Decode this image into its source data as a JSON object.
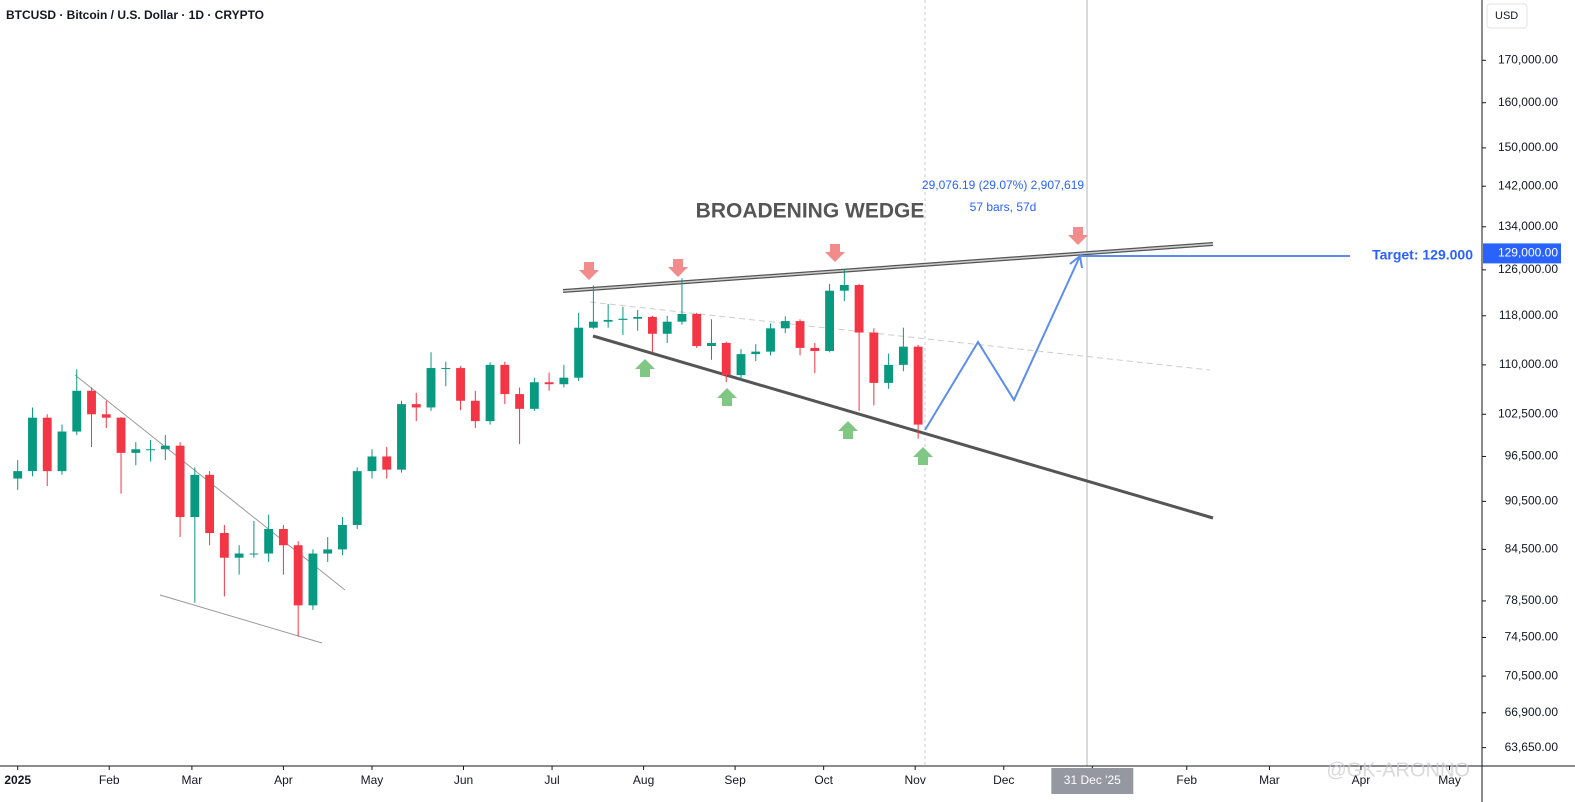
{
  "chart_data": {
    "type": "candlestick",
    "title": "BTCUSD · Bitcoin / U.S. Dollar · 1D · CRYPTO",
    "currency": "USD",
    "pattern_label": "BROADENING WEDGE",
    "measure_line1": "29,076.19 (29.07%) 2,907,619",
    "measure_line2": "57 bars, 57d",
    "target_label": "Target: 129.000",
    "price_marker": {
      "value": 129000,
      "label": "129,000.00"
    },
    "watermark": "@GK-ARONNO",
    "log_scale": true,
    "up_color": "#089981",
    "down_color": "#f23645",
    "x": [
      1,
      6,
      11,
      16,
      21,
      26,
      31,
      36,
      41,
      46,
      51,
      56,
      61,
      66,
      71,
      76,
      81,
      86,
      91,
      96,
      101,
      106,
      111,
      116,
      121,
      126,
      131,
      136,
      141,
      146,
      151,
      156,
      161,
      166,
      171,
      176,
      181,
      186,
      191,
      196,
      201,
      206,
      211,
      216,
      221,
      226,
      231,
      236,
      241,
      246,
      251,
      256,
      261,
      266,
      271,
      276,
      281,
      286,
      291,
      296,
      301,
      306
    ],
    "open": [
      93500,
      94500,
      102000,
      94500,
      100000,
      106000,
      102500,
      102000,
      97000,
      97500,
      97500,
      98000,
      88500,
      94000,
      86500,
      83500,
      84000,
      84000,
      87000,
      85000,
      78000,
      84000,
      84500,
      87500,
      94500,
      96500,
      94700,
      104000,
      103500,
      109500,
      109500,
      104500,
      101500,
      110000,
      105500,
      103300,
      107300,
      107000,
      108000,
      116000,
      117000,
      117300,
      117500,
      117800,
      115000,
      117000,
      118300,
      113000,
      113500,
      108400,
      111700,
      112100,
      115900,
      117100,
      112700,
      112200,
      122300,
      123300,
      115200,
      107200,
      110000,
      112900
    ],
    "high": [
      96000,
      103500,
      102500,
      101000,
      109300,
      106500,
      104500,
      102100,
      98500,
      98800,
      99500,
      98500,
      95000,
      94500,
      87500,
      85000,
      88000,
      88800,
      87500,
      85500,
      84500,
      86000,
      88500,
      95000,
      97500,
      97800,
      104500,
      105700,
      112000,
      110500,
      109800,
      106000,
      110400,
      110500,
      106500,
      108000,
      108800,
      110000,
      118500,
      123200,
      120000,
      119500,
      119000,
      118000,
      118000,
      124500,
      118500,
      117400,
      113700,
      112500,
      113300,
      116700,
      117900,
      117400,
      113500,
      123500,
      126200,
      123500,
      115900,
      111800,
      116000,
      113200
    ],
    "low": [
      92000,
      93800,
      92500,
      94000,
      99500,
      97800,
      100500,
      91500,
      95300,
      95800,
      96000,
      86000,
      78300,
      85000,
      79000,
      81500,
      83500,
      83000,
      81500,
      74600,
      77500,
      83000,
      83800,
      87000,
      93500,
      93500,
      94300,
      101500,
      103000,
      106700,
      103100,
      100500,
      101000,
      104000,
      98200,
      103000,
      106000,
      106500,
      107500,
      115800,
      116000,
      114800,
      115500,
      112000,
      113500,
      116500,
      112700,
      110800,
      107300,
      107700,
      110600,
      111500,
      115100,
      111500,
      108700,
      112000,
      120500,
      103000,
      103800,
      106300,
      109000,
      99000
    ],
    "close": [
      94500,
      102000,
      94500,
      100000,
      106000,
      102500,
      102000,
      97000,
      97500,
      97500,
      98000,
      88500,
      94000,
      86500,
      83500,
      84000,
      84000,
      87000,
      85000,
      78000,
      84000,
      84500,
      87500,
      94500,
      96500,
      94700,
      104000,
      103500,
      109500,
      109500,
      104500,
      101500,
      110000,
      105500,
      103300,
      107300,
      107000,
      108000,
      116000,
      117000,
      117300,
      117500,
      117800,
      115000,
      117000,
      118300,
      113000,
      113500,
      108400,
      111700,
      112100,
      115900,
      117100,
      112700,
      112200,
      122300,
      123300,
      115200,
      107200,
      110000,
      112900,
      101000
    ],
    "xlim": [
      -5,
      497
    ],
    "xticks": [
      {
        "value": 1,
        "label": "2025"
      },
      {
        "value": 32,
        "label": "Feb"
      },
      {
        "value": 60,
        "label": "Mar"
      },
      {
        "value": 91,
        "label": "Apr"
      },
      {
        "value": 121,
        "label": "May"
      },
      {
        "value": 152,
        "label": "Jun"
      },
      {
        "value": 182,
        "label": "Jul"
      },
      {
        "value": 213,
        "label": "Aug"
      },
      {
        "value": 244,
        "label": "Sep"
      },
      {
        "value": 274,
        "label": "Oct"
      },
      {
        "value": 305,
        "label": "Nov"
      },
      {
        "value": 335,
        "label": "Dec"
      },
      {
        "value": 365,
        "label": "31 Dec '25"
      },
      {
        "value": 397,
        "label": "Feb"
      },
      {
        "value": 425,
        "label": "Mar"
      },
      {
        "value": 456,
        "label": "Apr"
      },
      {
        "value": 486,
        "label": "May"
      }
    ],
    "ylim": [
      62000,
      185300
    ],
    "yticks": [
      {
        "value": 170000,
        "label": "170,000.00"
      },
      {
        "value": 160000,
        "label": "160,000.00"
      },
      {
        "value": 150000,
        "label": "150,000.00"
      },
      {
        "value": 142000,
        "label": "142,000.00"
      },
      {
        "value": 134000,
        "label": "134,000.00"
      },
      {
        "value": 126000,
        "label": "126,000.00"
      },
      {
        "value": 118000,
        "label": "118,000.00"
      },
      {
        "value": 110000,
        "label": "110,000.00"
      },
      {
        "value": 102500,
        "label": "102,500.00"
      },
      {
        "value": 96500,
        "label": "96,500.00"
      },
      {
        "value": 90500,
        "label": "90,500.00"
      },
      {
        "value": 84500,
        "label": "84,500.00"
      },
      {
        "value": 78500,
        "label": "78,500.00"
      },
      {
        "value": 74500,
        "label": "74,500.00"
      },
      {
        "value": 70500,
        "label": "70,500.00"
      },
      {
        "value": 66900,
        "label": "66,900.00"
      },
      {
        "value": 63650,
        "label": "63,650.00"
      }
    ]
  }
}
